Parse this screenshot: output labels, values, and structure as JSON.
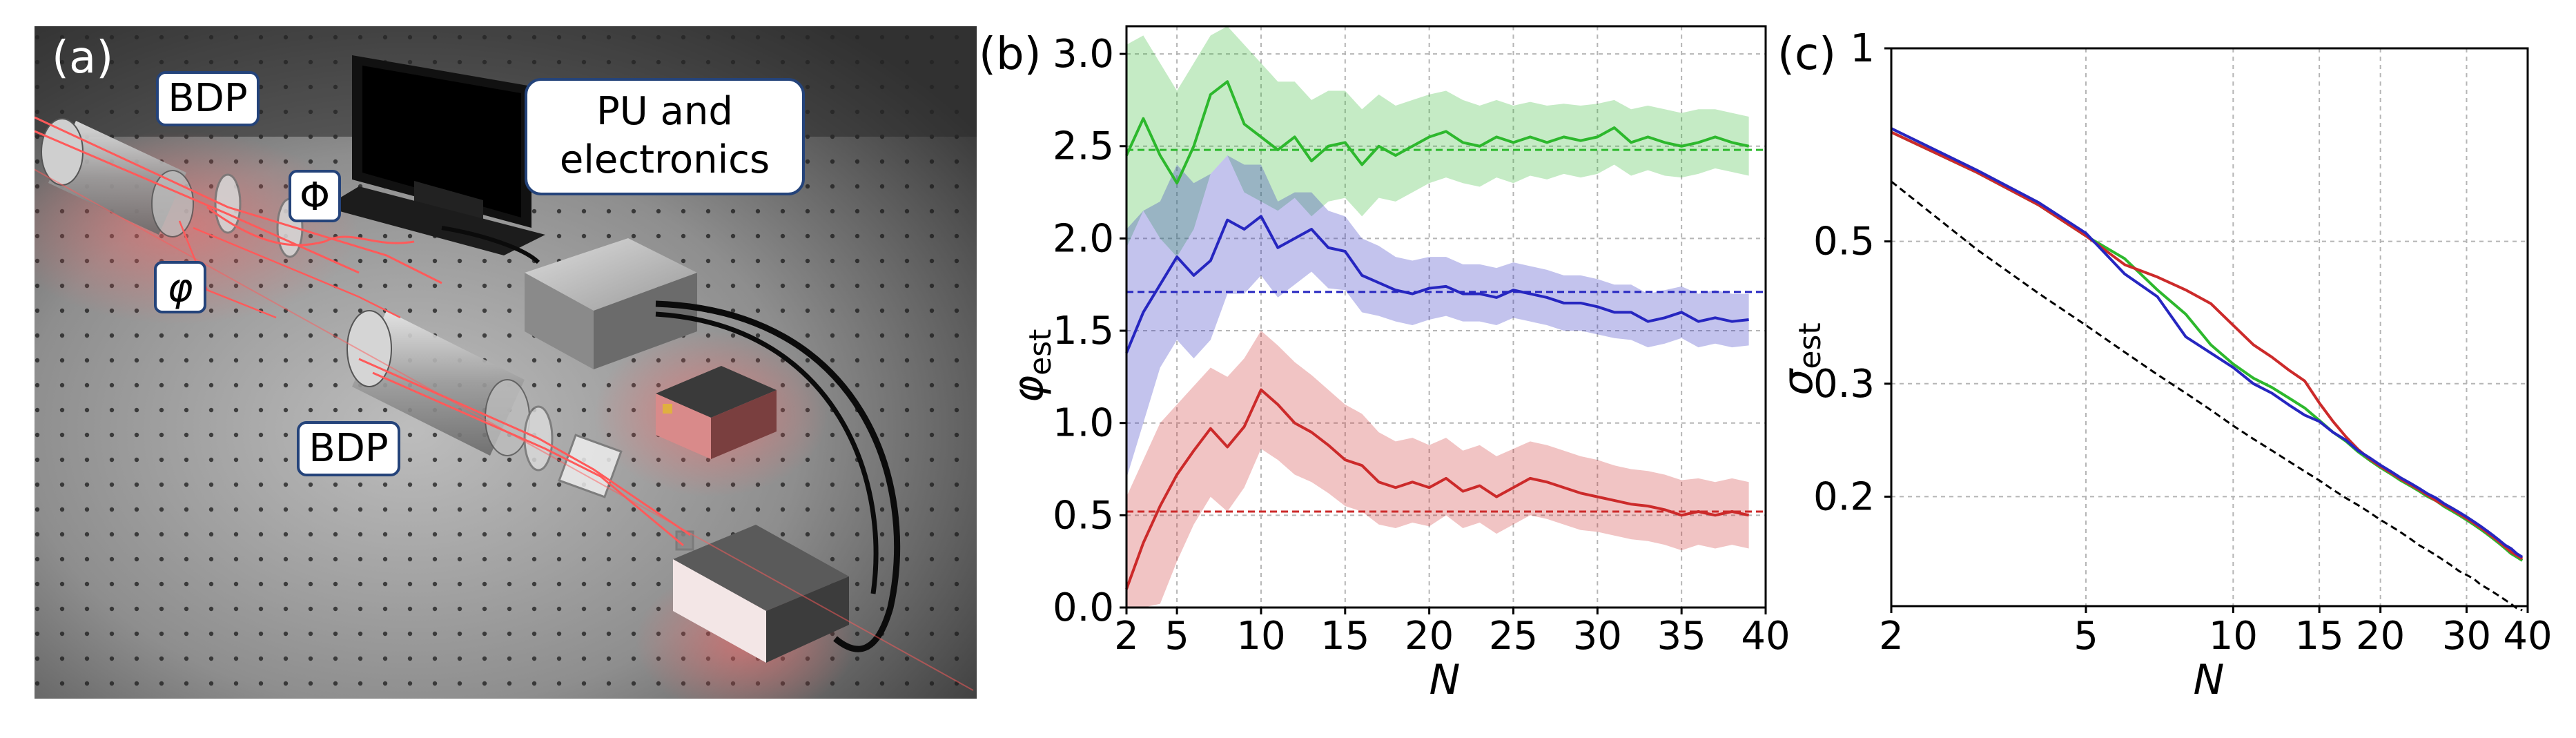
{
  "panel_a": {
    "label": "(a)",
    "callouts": [
      {
        "text": "BDP"
      },
      {
        "text": "PU and"
      },
      {
        "text": "electronics"
      },
      {
        "text": "Φ"
      },
      {
        "text": "φ"
      },
      {
        "text": "BDP"
      }
    ]
  },
  "colors": {
    "green": "#2db82d",
    "blue": "#2626c0",
    "red": "#cc2a2a",
    "black": "#000000"
  },
  "chart_data": [
    {
      "panel_label": "(b)",
      "type": "line",
      "xlabel": "N",
      "ylabel": "φest",
      "ylabel_main": "φ",
      "ylabel_sub": "est",
      "xlim": [
        2,
        40
      ],
      "ylim": [
        0.0,
        3.15
      ],
      "xticks": [
        2,
        5,
        10,
        15,
        20,
        25,
        30,
        35,
        40
      ],
      "yticks": [
        0.0,
        0.5,
        1.0,
        1.5,
        2.0,
        2.5,
        3.0
      ],
      "ytick_labels": [
        "0.0",
        "0.5",
        "1.0",
        "1.5",
        "2.0",
        "2.5",
        "3.0"
      ],
      "x": [
        2,
        3,
        4,
        5,
        6,
        7,
        8,
        9,
        10,
        11,
        12,
        13,
        14,
        15,
        16,
        17,
        18,
        19,
        20,
        21,
        22,
        23,
        24,
        25,
        26,
        27,
        28,
        29,
        30,
        31,
        32,
        33,
        34,
        35,
        36,
        37,
        38,
        39
      ],
      "series": [
        {
          "name": "green",
          "color": "#2db82d",
          "true_value": 2.48,
          "values": [
            2.45,
            2.65,
            2.45,
            2.3,
            2.5,
            2.78,
            2.85,
            2.62,
            2.55,
            2.48,
            2.55,
            2.42,
            2.5,
            2.52,
            2.4,
            2.5,
            2.45,
            2.5,
            2.55,
            2.58,
            2.52,
            2.5,
            2.55,
            2.52,
            2.55,
            2.52,
            2.55,
            2.53,
            2.55,
            2.6,
            2.52,
            2.55,
            2.52,
            2.5,
            2.52,
            2.55,
            2.52,
            2.5
          ],
          "upper": [
            3.05,
            3.1,
            2.95,
            2.8,
            2.95,
            3.1,
            3.15,
            3.05,
            2.95,
            2.85,
            2.85,
            2.75,
            2.8,
            2.8,
            2.7,
            2.78,
            2.72,
            2.75,
            2.78,
            2.8,
            2.75,
            2.72,
            2.75,
            2.72,
            2.74,
            2.72,
            2.73,
            2.72,
            2.73,
            2.75,
            2.7,
            2.72,
            2.7,
            2.68,
            2.7,
            2.7,
            2.68,
            2.66
          ],
          "lower": [
            1.95,
            2.15,
            2.0,
            1.9,
            2.05,
            2.35,
            2.45,
            2.25,
            2.2,
            2.15,
            2.22,
            2.12,
            2.2,
            2.22,
            2.12,
            2.22,
            2.2,
            2.25,
            2.3,
            2.33,
            2.3,
            2.28,
            2.33,
            2.3,
            2.34,
            2.32,
            2.35,
            2.33,
            2.35,
            2.4,
            2.34,
            2.37,
            2.34,
            2.33,
            2.35,
            2.38,
            2.36,
            2.34
          ]
        },
        {
          "name": "blue",
          "color": "#2626c0",
          "true_value": 1.71,
          "values": [
            1.38,
            1.6,
            1.75,
            1.9,
            1.8,
            1.88,
            2.1,
            2.05,
            2.12,
            1.95,
            2.0,
            2.05,
            1.95,
            1.93,
            1.8,
            1.76,
            1.72,
            1.7,
            1.73,
            1.74,
            1.7,
            1.7,
            1.68,
            1.72,
            1.7,
            1.68,
            1.65,
            1.65,
            1.63,
            1.6,
            1.6,
            1.55,
            1.57,
            1.6,
            1.55,
            1.57,
            1.55,
            1.56
          ],
          "upper": [
            2.05,
            2.15,
            2.2,
            2.4,
            2.3,
            2.35,
            2.45,
            2.4,
            2.4,
            2.2,
            2.25,
            2.25,
            2.15,
            2.12,
            2.0,
            1.96,
            1.9,
            1.88,
            1.9,
            1.9,
            1.86,
            1.86,
            1.84,
            1.87,
            1.85,
            1.83,
            1.8,
            1.8,
            1.78,
            1.75,
            1.75,
            1.7,
            1.72,
            1.74,
            1.7,
            1.72,
            1.7,
            1.7
          ],
          "lower": [
            0.7,
            1.0,
            1.3,
            1.45,
            1.35,
            1.45,
            1.7,
            1.7,
            1.8,
            1.68,
            1.75,
            1.82,
            1.73,
            1.72,
            1.6,
            1.58,
            1.55,
            1.53,
            1.56,
            1.58,
            1.55,
            1.55,
            1.53,
            1.57,
            1.55,
            1.53,
            1.5,
            1.5,
            1.48,
            1.46,
            1.45,
            1.41,
            1.43,
            1.46,
            1.41,
            1.43,
            1.41,
            1.42
          ]
        },
        {
          "name": "red",
          "color": "#cc2a2a",
          "true_value": 0.52,
          "values": [
            0.1,
            0.35,
            0.55,
            0.72,
            0.85,
            0.97,
            0.87,
            0.98,
            1.18,
            1.1,
            1.0,
            0.95,
            0.88,
            0.8,
            0.77,
            0.68,
            0.65,
            0.68,
            0.65,
            0.7,
            0.63,
            0.66,
            0.6,
            0.65,
            0.7,
            0.68,
            0.65,
            0.62,
            0.6,
            0.58,
            0.56,
            0.55,
            0.53,
            0.5,
            0.52,
            0.5,
            0.52,
            0.5
          ],
          "upper": [
            0.6,
            0.8,
            1.0,
            1.1,
            1.2,
            1.3,
            1.25,
            1.35,
            1.5,
            1.42,
            1.33,
            1.26,
            1.18,
            1.1,
            1.05,
            0.95,
            0.9,
            0.92,
            0.88,
            0.92,
            0.85,
            0.88,
            0.82,
            0.86,
            0.9,
            0.88,
            0.85,
            0.82,
            0.8,
            0.77,
            0.75,
            0.74,
            0.72,
            0.69,
            0.7,
            0.68,
            0.7,
            0.68
          ],
          "lower": [
            0.0,
            0.0,
            0.02,
            0.25,
            0.45,
            0.6,
            0.52,
            0.65,
            0.86,
            0.8,
            0.72,
            0.68,
            0.62,
            0.55,
            0.52,
            0.45,
            0.43,
            0.46,
            0.44,
            0.5,
            0.43,
            0.46,
            0.4,
            0.45,
            0.5,
            0.48,
            0.45,
            0.42,
            0.41,
            0.39,
            0.37,
            0.36,
            0.34,
            0.31,
            0.34,
            0.32,
            0.34,
            0.32
          ]
        }
      ]
    },
    {
      "panel_label": "(c)",
      "type": "line",
      "xscale": "log",
      "yscale": "log",
      "xlabel": "N",
      "ylabel": "σest",
      "ylabel_main": "σ",
      "ylabel_sub": "est",
      "xlim": [
        2,
        40
      ],
      "ylim": [
        0.135,
        1.0
      ],
      "xticks": [
        2,
        5,
        10,
        15,
        20,
        30,
        40
      ],
      "yticks": [
        0.2,
        0.3,
        0.5,
        1.0
      ],
      "ytick_labels": [
        "0.2",
        "0.3",
        "0.5",
        "1"
      ],
      "x": [
        2,
        3,
        4,
        5,
        6,
        7,
        8,
        9,
        10,
        11,
        12,
        13,
        14,
        15,
        16,
        17,
        18,
        19,
        20,
        21,
        22,
        23,
        24,
        25,
        26,
        27,
        28,
        29,
        30,
        31,
        32,
        33,
        34,
        35,
        36,
        37,
        38,
        39
      ],
      "series": [
        {
          "name": "bound",
          "color": "#000000",
          "dashed": true,
          "values": [
            0.62,
            0.485,
            0.415,
            0.37,
            0.336,
            0.31,
            0.29,
            0.273,
            0.258,
            0.246,
            0.236,
            0.227,
            0.219,
            0.212,
            0.205,
            0.199,
            0.194,
            0.189,
            0.184,
            0.18,
            0.176,
            0.172,
            0.168,
            0.165,
            0.162,
            0.159,
            0.156,
            0.153,
            0.151,
            0.149,
            0.146,
            0.144,
            0.142,
            0.14,
            0.138,
            0.136,
            0.134,
            0.133
          ]
        },
        {
          "name": "green",
          "color": "#2db82d",
          "values": [
            0.74,
            0.64,
            0.57,
            0.51,
            0.47,
            0.42,
            0.385,
            0.345,
            0.322,
            0.306,
            0.296,
            0.285,
            0.275,
            0.263,
            0.252,
            0.244,
            0.235,
            0.228,
            0.222,
            0.217,
            0.212,
            0.208,
            0.204,
            0.2,
            0.197,
            0.193,
            0.19,
            0.187,
            0.184,
            0.181,
            0.178,
            0.175,
            0.172,
            0.169,
            0.166,
            0.163,
            0.161,
            0.159
          ]
        },
        {
          "name": "red",
          "color": "#cc2a2a",
          "values": [
            0.74,
            0.64,
            0.57,
            0.51,
            0.46,
            0.44,
            0.42,
            0.4,
            0.37,
            0.345,
            0.33,
            0.315,
            0.303,
            0.28,
            0.262,
            0.248,
            0.237,
            0.229,
            0.223,
            0.218,
            0.213,
            0.209,
            0.205,
            0.201,
            0.197,
            0.194,
            0.191,
            0.188,
            0.185,
            0.182,
            0.179,
            0.176,
            0.173,
            0.17,
            0.167,
            0.164,
            0.162,
            0.16
          ]
        },
        {
          "name": "blue",
          "color": "#2626c0",
          "values": [
            0.75,
            0.645,
            0.575,
            0.515,
            0.445,
            0.41,
            0.355,
            0.335,
            0.318,
            0.3,
            0.29,
            0.278,
            0.268,
            0.262,
            0.252,
            0.245,
            0.236,
            0.23,
            0.224,
            0.219,
            0.214,
            0.21,
            0.206,
            0.202,
            0.199,
            0.195,
            0.192,
            0.189,
            0.186,
            0.183,
            0.18,
            0.177,
            0.174,
            0.171,
            0.168,
            0.166,
            0.163,
            0.161
          ]
        }
      ]
    }
  ]
}
